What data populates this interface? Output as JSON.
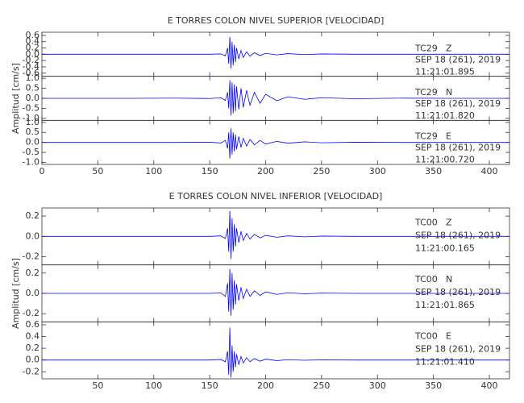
{
  "chart_data": [
    {
      "type": "line",
      "title": "E TORRES COLON NIVEL SUPERIOR [VELOCIDAD]",
      "y_label": "Amplitud [cm/s]",
      "xlim": [
        0,
        418
      ],
      "xticks": [
        0,
        50,
        100,
        150,
        200,
        250,
        300,
        350,
        400
      ],
      "x": [
        0,
        40,
        80,
        120,
        150,
        160,
        164,
        166,
        167,
        168,
        169,
        170,
        171,
        172,
        173,
        174,
        176,
        178,
        180,
        183,
        186,
        190,
        195,
        200,
        210,
        220,
        235,
        250,
        280,
        320,
        360,
        418
      ],
      "panels": [
        {
          "station": "TC29",
          "component": "Z",
          "date": "SEP 18 (261), 2019",
          "time": "11:21:01.895",
          "color": "#0000ff",
          "ylim": [
            -0.7,
            0.7
          ],
          "yticks": [
            -0.6,
            -0.4,
            -0.2,
            {
              "value": 0,
              "label": "0.0"
            },
            0.2,
            0.4,
            0.6
          ],
          "values": [
            0,
            0,
            0,
            0,
            0,
            0.01,
            -0.05,
            0.2,
            -0.3,
            0.55,
            -0.45,
            0.4,
            -0.35,
            0.3,
            -0.25,
            0.2,
            -0.15,
            0.12,
            -0.1,
            0.08,
            -0.06,
            0.05,
            -0.04,
            0.03,
            -0.02,
            0.02,
            -0.01,
            0.01,
            0,
            0,
            0,
            0
          ]
        },
        {
          "station": "TC29",
          "component": "N",
          "date": "SEP 18 (261), 2019",
          "time": "11:21:01.820",
          "color": "#0000ff",
          "ylim": [
            -1.1,
            1.1
          ],
          "yticks": [
            {
              "value": -1,
              "label": "-1.0"
            },
            -0.5,
            {
              "value": 0,
              "label": "0.0"
            },
            0.5,
            {
              "value": 1,
              "label": "1.0"
            }
          ],
          "values": [
            0,
            0,
            0,
            0.01,
            -0.01,
            0.03,
            -0.1,
            0.3,
            -0.5,
            0.9,
            -0.85,
            0.8,
            -0.75,
            0.7,
            -0.65,
            0.6,
            -0.55,
            0.5,
            -0.45,
            0.4,
            -0.35,
            0.3,
            -0.25,
            0.2,
            -0.12,
            0.08,
            -0.05,
            0.03,
            -0.02,
            0.01,
            0,
            0
          ]
        },
        {
          "station": "TC29",
          "component": "E",
          "date": "SEP 18 (261), 2019",
          "time": "11:21:00.720",
          "color": "#0000ff",
          "ylim": [
            -1.1,
            1.1
          ],
          "yticks": [
            {
              "value": -1,
              "label": "-1.0"
            },
            -0.5,
            {
              "value": 0,
              "label": "0.0"
            },
            0.5,
            {
              "value": 1,
              "label": "1.0"
            }
          ],
          "values": [
            0,
            0,
            0,
            0,
            0.01,
            -0.03,
            0.1,
            -0.3,
            0.5,
            -0.8,
            0.7,
            -0.6,
            0.5,
            -0.45,
            0.4,
            -0.35,
            0.3,
            -0.25,
            0.2,
            -0.18,
            0.15,
            -0.12,
            0.1,
            -0.08,
            0.05,
            -0.04,
            0.03,
            -0.02,
            0.01,
            0,
            0,
            0
          ]
        }
      ]
    },
    {
      "type": "line",
      "title": "E TORRES COLON NIVEL INFERIOR [VELOCIDAD]",
      "y_label": "Amplitud [cm/s]",
      "xlim": [
        0,
        418
      ],
      "xticks": [
        50,
        100,
        150,
        200,
        250,
        300,
        350,
        400
      ],
      "x": [
        0,
        40,
        80,
        120,
        150,
        160,
        164,
        166,
        167,
        168,
        169,
        170,
        171,
        172,
        173,
        174,
        176,
        178,
        180,
        183,
        186,
        190,
        195,
        200,
        210,
        220,
        235,
        250,
        280,
        320,
        360,
        418
      ],
      "panels": [
        {
          "station": "TC00",
          "component": "Z",
          "date": "SEP 18 (261), 2019",
          "time": "11:21:00.165",
          "color": "#0000ff",
          "ylim": [
            -0.28,
            0.28
          ],
          "yticks": [
            -0.2,
            {
              "value": 0,
              "label": "0.0"
            },
            0.2
          ],
          "values": [
            0,
            0,
            0,
            0,
            0,
            0.005,
            -0.02,
            0.08,
            -0.15,
            0.25,
            -0.22,
            0.18,
            -0.15,
            0.12,
            -0.1,
            0.08,
            -0.06,
            0.05,
            -0.04,
            0.03,
            -0.025,
            0.02,
            -0.015,
            0.01,
            -0.008,
            0.005,
            -0.004,
            0.003,
            0,
            0,
            0,
            0
          ]
        },
        {
          "station": "TC00",
          "component": "N",
          "date": "SEP 18 (261), 2019",
          "time": "11:21:01.865",
          "color": "#0000ff",
          "ylim": [
            -0.28,
            0.28
          ],
          "yticks": [
            -0.2,
            {
              "value": 0,
              "label": "0.0"
            },
            0.2
          ],
          "values": [
            0,
            0,
            0,
            0,
            0,
            0.005,
            -0.03,
            0.1,
            -0.18,
            0.24,
            -0.22,
            0.2,
            -0.16,
            0.13,
            -0.11,
            0.09,
            -0.07,
            0.06,
            -0.05,
            0.04,
            -0.03,
            0.025,
            -0.02,
            0.015,
            -0.01,
            0.006,
            -0.004,
            0.003,
            0,
            0,
            0,
            0
          ]
        },
        {
          "station": "TC00",
          "component": "E",
          "date": "SEP 18 (261), 2019",
          "time": "11:21:01.410",
          "color": "#0000ff",
          "ylim": [
            -0.32,
            0.65
          ],
          "yticks": [
            -0.2,
            {
              "value": 0,
              "label": "0.0"
            },
            0.2,
            0.4,
            0.6
          ],
          "values": [
            0,
            0,
            0,
            0,
            0,
            0.01,
            -0.03,
            0.15,
            -0.25,
            0.55,
            -0.3,
            0.25,
            -0.2,
            0.15,
            -0.12,
            0.1,
            -0.08,
            0.06,
            -0.05,
            0.04,
            -0.03,
            0.025,
            -0.02,
            0.015,
            -0.01,
            0.006,
            -0.004,
            0.003,
            0,
            0,
            0,
            0
          ]
        }
      ]
    }
  ]
}
